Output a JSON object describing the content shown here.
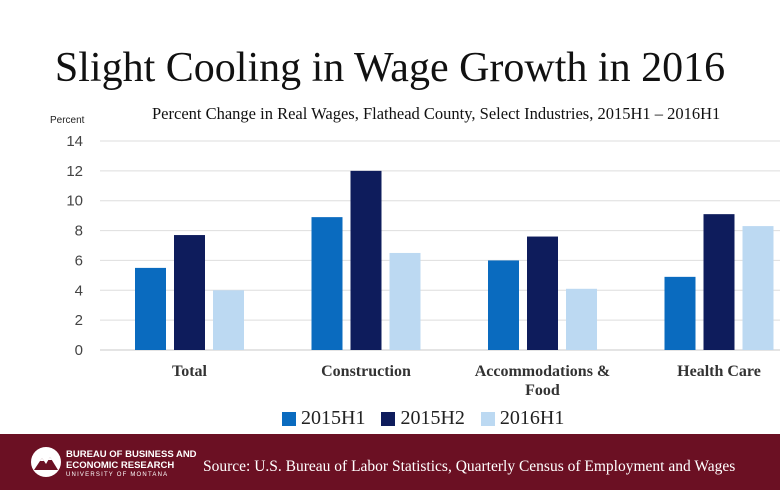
{
  "chart_data": {
    "type": "bar",
    "title": "Slight Cooling in Wage Growth in 2016",
    "subtitle": "Percent Change in Real Wages, Flathead County, Select Industries, 2015H1 – 2016H1",
    "ylabel": "Percent",
    "xlabel": "",
    "ylim": [
      0,
      14
    ],
    "yticks": [
      0,
      2,
      4,
      6,
      8,
      10,
      12,
      14
    ],
    "grid": true,
    "legend_position": "bottom",
    "categories": [
      "Total",
      "Construction",
      "Accommodations & Food",
      "Health Care"
    ],
    "category_lines": [
      [
        "Total"
      ],
      [
        "Construction"
      ],
      [
        "Accommodations &",
        "Food"
      ],
      [
        "Health Care"
      ]
    ],
    "series": [
      {
        "name": "2015H1",
        "color": "#0a6bbf",
        "values": [
          5.5,
          8.9,
          6.0,
          4.9
        ]
      },
      {
        "name": "2015H2",
        "color": "#0e1c5c",
        "values": [
          7.7,
          12.0,
          7.6,
          9.1
        ]
      },
      {
        "name": "2016H1",
        "color": "#bcd9f2",
        "values": [
          4.0,
          6.5,
          4.1,
          8.3
        ]
      }
    ]
  },
  "footer": {
    "logo_line1": "BUREAU OF BUSINESS AND",
    "logo_line2": "ECONOMIC RESEARCH",
    "logo_sub": "UNIVERSITY OF MONTANA",
    "source": "Source:  U.S. Bureau of Labor Statistics, Quarterly Census of Employment and Wages",
    "background": "#6b1023"
  }
}
